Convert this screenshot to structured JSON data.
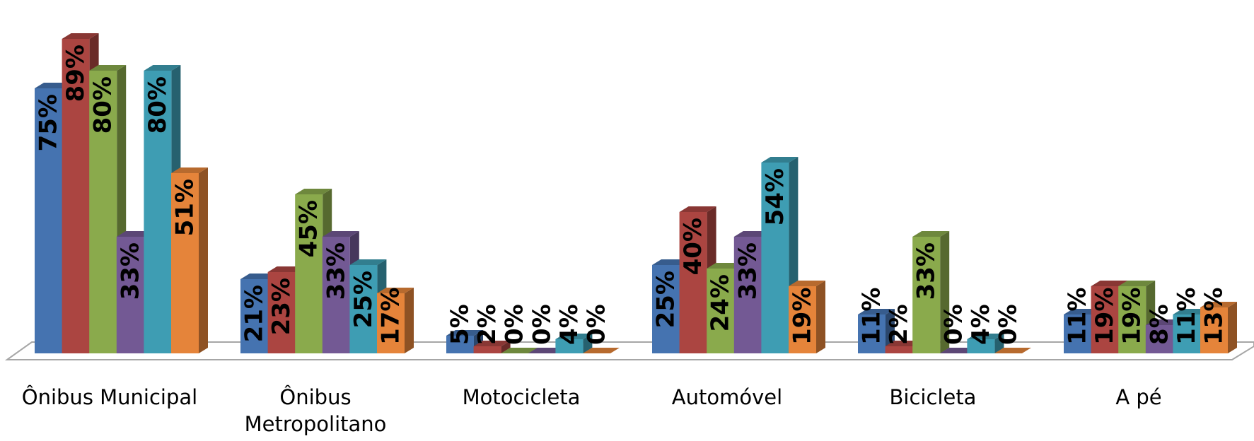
{
  "chart_data": {
    "type": "bar",
    "style": "3d-clustered-column",
    "categories": [
      "Ônibus Municipal",
      "Ônibus Metropolitano",
      "Motocicleta",
      "Automóvel",
      "Bicicleta",
      "A pé"
    ],
    "series": [
      {
        "values": [
          75,
          21,
          5,
          25,
          11,
          11
        ],
        "labels": [
          "75%",
          "21%",
          "5%",
          "25%",
          "11%",
          "11%"
        ],
        "color": "#4573b0"
      },
      {
        "values": [
          89,
          23,
          2,
          40,
          2,
          19
        ],
        "labels": [
          "89%",
          "23%",
          "2%",
          "40%",
          "2%",
          "19%"
        ],
        "color": "#ab4541"
      },
      {
        "values": [
          80,
          45,
          0,
          24,
          33,
          19
        ],
        "labels": [
          "80%",
          "45%",
          "0%",
          "24%",
          "33%",
          "19%"
        ],
        "color": "#8aaa4c"
      },
      {
        "values": [
          33,
          33,
          0,
          33,
          0,
          8
        ],
        "labels": [
          "33%",
          "33%",
          "0%",
          "33%",
          "0%",
          "8%"
        ],
        "color": "#735994"
      },
      {
        "values": [
          80,
          25,
          4,
          54,
          4,
          11
        ],
        "labels": [
          "80%",
          "25%",
          "4%",
          "54%",
          "4%",
          "11%"
        ],
        "color": "#3e9db3"
      },
      {
        "values": [
          51,
          17,
          0,
          19,
          0,
          13
        ],
        "labels": [
          "51%",
          "17%",
          "0%",
          "19%",
          "0%",
          "13%"
        ],
        "color": "#e5843a"
      }
    ],
    "ylim": [
      0,
      100
    ],
    "legend": "none",
    "grid": false
  }
}
